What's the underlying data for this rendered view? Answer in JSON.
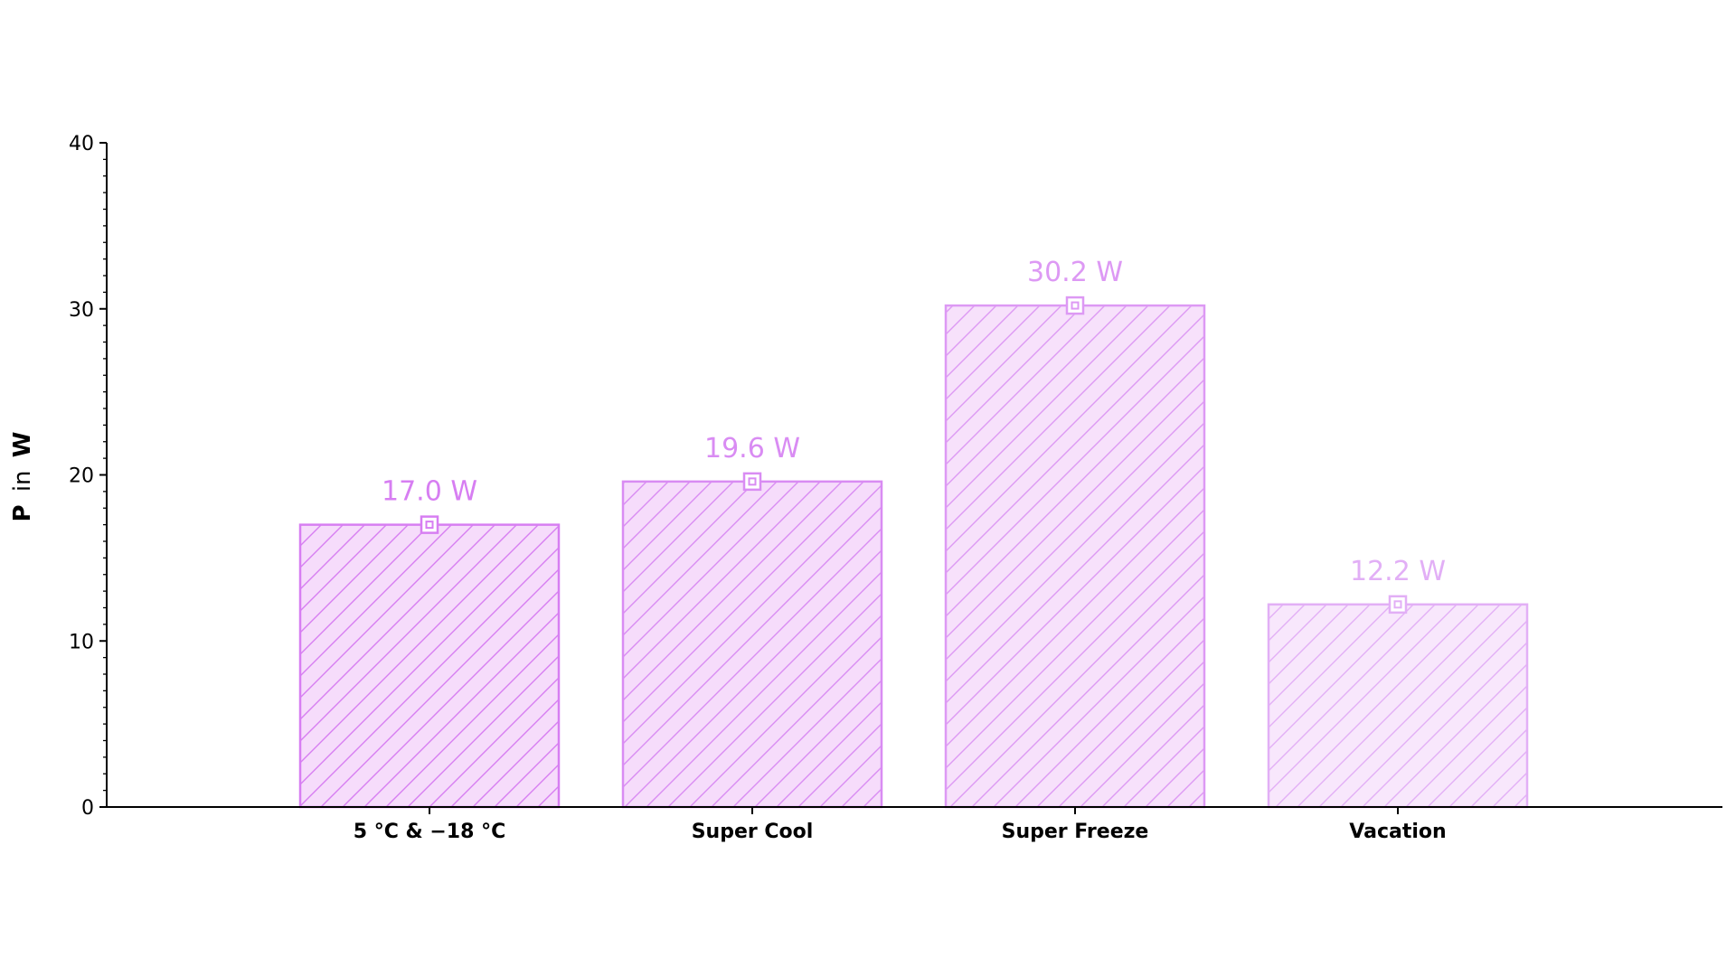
{
  "chart_data": {
    "type": "bar",
    "categories": [
      "5 °C &  −18 °C",
      "Super Cool",
      "Super Freeze",
      "Vacation"
    ],
    "values": [
      17.0,
      19.6,
      30.2,
      12.2
    ],
    "value_labels": [
      "17.0 W",
      "19.6 W",
      "30.2 W",
      "12.2 W"
    ],
    "title": "",
    "xlabel": "",
    "ylabel": {
      "symbol": "P",
      "connector": "in",
      "unit": "W"
    },
    "ylim": [
      0,
      40
    ],
    "yticks": [
      "0",
      "10",
      "20",
      "30",
      "40"
    ],
    "grid": false,
    "legend": "none",
    "colors": {
      "bar_stroke": [
        "#d77ef2",
        "#d98cf3",
        "#dd99f4",
        "#e2aff6"
      ],
      "bar_fill": [
        "#f6dcfb",
        "#f6dcfb",
        "#f7e1fb",
        "#f8e7fc"
      ],
      "label": [
        "#d77ef2",
        "#d98cf3",
        "#dd99f4",
        "#e2aff6"
      ],
      "axis": "#000000"
    },
    "marker": "square-in-square",
    "hatch": "diagonal"
  }
}
